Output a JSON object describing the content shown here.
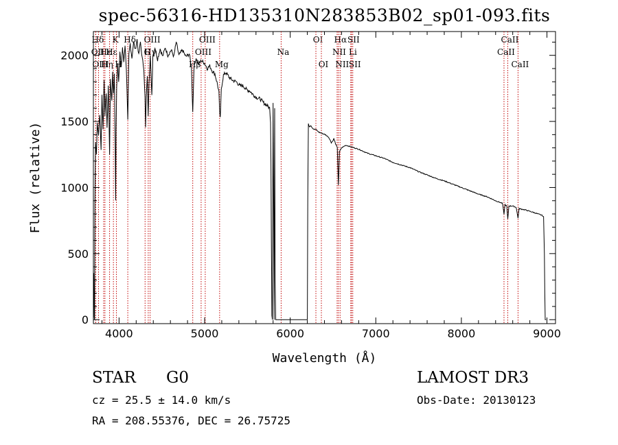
{
  "chart_data": {
    "type": "line",
    "title": "spec-56316-HD135310N283853B02_sp01-093.fits",
    "xlabel": "Wavelength (Å)",
    "ylabel": "Flux (relative)",
    "xlim": [
      3700,
      9100
    ],
    "ylim": [
      -30,
      2180
    ],
    "x_ticks": [
      4000,
      5000,
      6000,
      7000,
      8000,
      9000
    ],
    "y_ticks": [
      0,
      500,
      1000,
      1500,
      2000
    ],
    "x_tick_labels": [
      "4000",
      "5000",
      "6000",
      "7000",
      "8000",
      "9000"
    ],
    "y_tick_labels": [
      "0",
      "500",
      "1000",
      "1500",
      "2000"
    ],
    "series": [
      {
        "name": "flux",
        "points": [
          [
            3700,
            150
          ],
          [
            3705,
            350
          ],
          [
            3710,
            20
          ],
          [
            3714,
            0
          ],
          [
            3718,
            900
          ],
          [
            3725,
            1350
          ],
          [
            3735,
            1250
          ],
          [
            3745,
            1480
          ],
          [
            3760,
            1400
          ],
          [
            3775,
            1560
          ],
          [
            3790,
            1280
          ],
          [
            3800,
            1700
          ],
          [
            3812,
            1450
          ],
          [
            3825,
            1800
          ],
          [
            3835,
            1550
          ],
          [
            3850,
            1720
          ],
          [
            3860,
            1450
          ],
          [
            3875,
            1780
          ],
          [
            3889,
            1250
          ],
          [
            3900,
            1820
          ],
          [
            3915,
            1650
          ],
          [
            3925,
            1880
          ],
          [
            3935,
            1700
          ],
          [
            3945,
            1850
          ],
          [
            3955,
            1300
          ],
          [
            3960,
            900
          ],
          [
            3965,
            1400
          ],
          [
            3972,
            1750
          ],
          [
            3985,
            1950
          ],
          [
            3995,
            1800
          ],
          [
            4010,
            2030
          ],
          [
            4025,
            1900
          ],
          [
            4040,
            2060
          ],
          [
            4055,
            1950
          ],
          [
            4070,
            2080
          ],
          [
            4085,
            1900
          ],
          [
            4102,
            1500
          ],
          [
            4115,
            2000
          ],
          [
            4130,
            2090
          ],
          [
            4150,
            1980
          ],
          [
            4170,
            2100
          ],
          [
            4190,
            2040
          ],
          [
            4210,
            2120
          ],
          [
            4230,
            2000
          ],
          [
            4250,
            2100
          ],
          [
            4270,
            1980
          ],
          [
            4290,
            1900
          ],
          [
            4303,
            1680
          ],
          [
            4310,
            1450
          ],
          [
            4318,
            1680
          ],
          [
            4330,
            1850
          ],
          [
            4340,
            1550
          ],
          [
            4350,
            1800
          ],
          [
            4365,
            1990
          ],
          [
            4383,
            1700
          ],
          [
            4395,
            2000
          ],
          [
            4420,
            2060
          ],
          [
            4450,
            1970
          ],
          [
            4480,
            2050
          ],
          [
            4510,
            1990
          ],
          [
            4540,
            2060
          ],
          [
            4570,
            2000
          ],
          [
            4610,
            2040
          ],
          [
            4640,
            1990
          ],
          [
            4668,
            2100
          ],
          [
            4700,
            2000
          ],
          [
            4740,
            2040
          ],
          [
            4780,
            1990
          ],
          [
            4820,
            2010
          ],
          [
            4845,
            1920
          ],
          [
            4861,
            1570
          ],
          [
            4875,
            1900
          ],
          [
            4900,
            1980
          ],
          [
            4930,
            1930
          ],
          [
            4960,
            1960
          ],
          [
            5000,
            1940
          ],
          [
            5030,
            1900
          ],
          [
            5060,
            1920
          ],
          [
            5090,
            1880
          ],
          [
            5120,
            1860
          ],
          [
            5150,
            1780
          ],
          [
            5167,
            1720
          ],
          [
            5173,
            1600
          ],
          [
            5183,
            1520
          ],
          [
            5195,
            1750
          ],
          [
            5220,
            1850
          ],
          [
            5250,
            1870
          ],
          [
            5290,
            1830
          ],
          [
            5330,
            1810
          ],
          [
            5370,
            1800
          ],
          [
            5410,
            1770
          ],
          [
            5450,
            1770
          ],
          [
            5490,
            1740
          ],
          [
            5530,
            1730
          ],
          [
            5570,
            1700
          ],
          [
            5610,
            1680
          ],
          [
            5650,
            1670
          ],
          [
            5690,
            1640
          ],
          [
            5730,
            1620
          ],
          [
            5760,
            1600
          ],
          [
            5770,
            1500
          ],
          [
            5775,
            1200
          ],
          [
            5780,
            600
          ],
          [
            5786,
            30
          ],
          [
            5792,
            0
          ],
          [
            5800,
            1640
          ],
          [
            5806,
            900
          ],
          [
            5812,
            0
          ],
          [
            5818,
            1600
          ],
          [
            5824,
            300
          ],
          [
            5830,
            0
          ],
          [
            5850,
            0
          ],
          [
            6000,
            0
          ],
          [
            6100,
            0
          ],
          [
            6180,
            0
          ],
          [
            6200,
            0
          ],
          [
            6205,
            900
          ],
          [
            6212,
            1480
          ],
          [
            6225,
            1460
          ],
          [
            6240,
            1470
          ],
          [
            6260,
            1450
          ],
          [
            6280,
            1440
          ],
          [
            6300,
            1440
          ],
          [
            6330,
            1420
          ],
          [
            6370,
            1410
          ],
          [
            6410,
            1400
          ],
          [
            6450,
            1380
          ],
          [
            6480,
            1340
          ],
          [
            6495,
            1350
          ],
          [
            6510,
            1370
          ],
          [
            6530,
            1330
          ],
          [
            6550,
            1300
          ],
          [
            6563,
            1020
          ],
          [
            6575,
            1270
          ],
          [
            6600,
            1300
          ],
          [
            6650,
            1320
          ],
          [
            6700,
            1310
          ],
          [
            6800,
            1290
          ],
          [
            6900,
            1260
          ],
          [
            7000,
            1240
          ],
          [
            7100,
            1220
          ],
          [
            7200,
            1190
          ],
          [
            7300,
            1170
          ],
          [
            7400,
            1150
          ],
          [
            7500,
            1120
          ],
          [
            7600,
            1095
          ],
          [
            7700,
            1070
          ],
          [
            7800,
            1050
          ],
          [
            7900,
            1025
          ],
          [
            8000,
            1000
          ],
          [
            8100,
            975
          ],
          [
            8200,
            950
          ],
          [
            8300,
            930
          ],
          [
            8400,
            900
          ],
          [
            8480,
            880
          ],
          [
            8498,
            800
          ],
          [
            8510,
            870
          ],
          [
            8530,
            860
          ],
          [
            8542,
            760
          ],
          [
            8555,
            860
          ],
          [
            8600,
            860
          ],
          [
            8640,
            850
          ],
          [
            8662,
            770
          ],
          [
            8675,
            840
          ],
          [
            8750,
            830
          ],
          [
            8850,
            810
          ],
          [
            8940,
            790
          ],
          [
            8960,
            780
          ],
          [
            8970,
            500
          ],
          [
            8975,
            200
          ],
          [
            8980,
            0
          ],
          [
            8990,
            0
          ]
        ]
      }
    ],
    "lines": [
      {
        "label": "Hδ",
        "x": 3727,
        "row": 1
      },
      {
        "label": "OII",
        "x": 3727,
        "row": 2
      },
      {
        "label": "OIII",
        "x": 3760,
        "row": 3
      },
      {
        "label": "Hε",
        "x": 3820,
        "row": 2
      },
      {
        "label": "Hη",
        "x": 3835,
        "row": 3
      },
      {
        "label": "K",
        "x": 3934,
        "row": 1
      },
      {
        "label": "H",
        "x": 3969,
        "row": 3
      },
      {
        "label": "Hε",
        "x": 3889,
        "row": 2
      },
      {
        "label": "Hδ",
        "x": 4102,
        "row": 1
      },
      {
        "label": "G",
        "x": 4304,
        "row": 2
      },
      {
        "label": "Hγ",
        "x": 4341,
        "row": 2
      },
      {
        "label": "OIII",
        "x": 4363,
        "row": 1
      },
      {
        "label": "Hβ",
        "x": 4861,
        "row": 3
      },
      {
        "label": "OIII",
        "x": 4959,
        "row": 2
      },
      {
        "label": "OIII",
        "x": 5007,
        "row": 1
      },
      {
        "label": "Mg",
        "x": 5175,
        "row": 3
      },
      {
        "label": "Na",
        "x": 5894,
        "row": 2
      },
      {
        "label": "OI",
        "x": 6300,
        "row": 1
      },
      {
        "label": "OI",
        "x": 6364,
        "row": 3
      },
      {
        "label": "NII",
        "x": 6548,
        "row": 2
      },
      {
        "label": "Hα",
        "x": 6563,
        "row": 1
      },
      {
        "label": "NII",
        "x": 6583,
        "row": 3
      },
      {
        "label": "Li",
        "x": 6708,
        "row": 2
      },
      {
        "label": "SII",
        "x": 6716,
        "row": 1
      },
      {
        "label": "SII",
        "x": 6731,
        "row": 3
      },
      {
        "label": "CaII",
        "x": 8498,
        "row": 2
      },
      {
        "label": "CaII",
        "x": 8542,
        "row": 1
      },
      {
        "label": "CaII",
        "x": 8662,
        "row": 3
      }
    ]
  },
  "info": {
    "object_class": "STAR",
    "subclass": "G0",
    "survey": "LAMOST DR3",
    "cz": "cz = 25.5 ± 14.0 km/s",
    "obs_date": "Obs-Date: 20130123",
    "coords": "RA = 208.55376, DEC =  26.75725"
  },
  "colors": {
    "line_marker": "#c00000",
    "spectrum": "#000000"
  }
}
